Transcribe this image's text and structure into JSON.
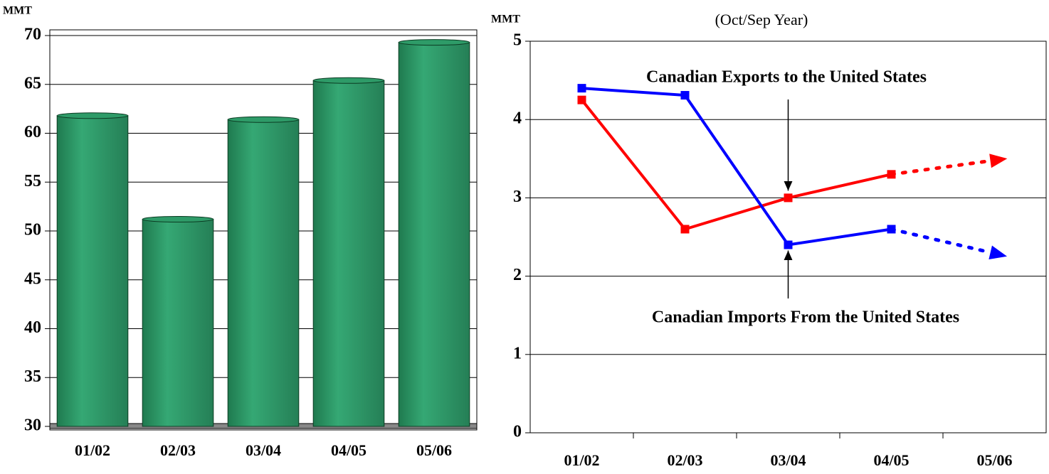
{
  "chart_data": [
    {
      "type": "bar",
      "y_label": "MMT",
      "categories": [
        "01/02",
        "02/03",
        "03/04",
        "04/05",
        "05/06"
      ],
      "values": [
        61.8,
        51.2,
        61.4,
        65.4,
        69.3
      ],
      "color": "#2e9b68",
      "ylim": [
        30,
        70
      ],
      "yticks": [
        30,
        35,
        40,
        45,
        50,
        55,
        60,
        65,
        70
      ],
      "grid": true
    },
    {
      "type": "line",
      "y_label": "MMT",
      "subtitle": "(Oct/Sep Year)",
      "categories": [
        "01/02",
        "02/03",
        "03/04",
        "04/05",
        "05/06"
      ],
      "series": [
        {
          "name": "Canadian Exports to the United States",
          "color": "#ff0000",
          "values": [
            4.25,
            2.6,
            3.0,
            3.3,
            null
          ],
          "projected": 3.48
        },
        {
          "name": "Canadian Imports From the United States",
          "color": "#0000ff",
          "values": [
            4.4,
            4.31,
            2.4,
            2.6,
            null
          ],
          "projected": 2.29
        }
      ],
      "ylim": [
        0,
        5
      ],
      "yticks": [
        0,
        1,
        2,
        3,
        4,
        5
      ],
      "grid": true
    }
  ]
}
